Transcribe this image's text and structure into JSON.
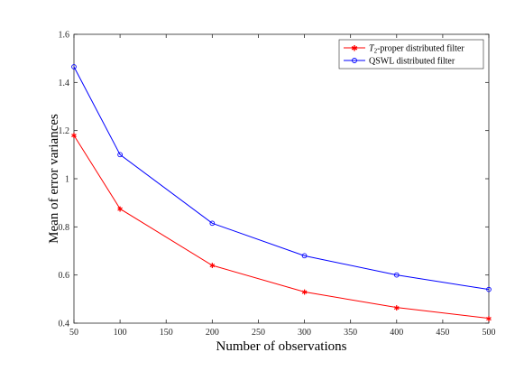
{
  "chart_data": {
    "type": "line",
    "xlabel": "Number of observations",
    "ylabel": "Mean of error variances",
    "xlim": [
      50,
      500
    ],
    "ylim": [
      0.4,
      1.6
    ],
    "xticks": [
      50,
      100,
      150,
      200,
      250,
      300,
      350,
      400,
      450,
      500
    ],
    "yticks": [
      0.4,
      0.6,
      0.8,
      1.0,
      1.2,
      1.4,
      1.6
    ],
    "xtick_labels": [
      "50",
      "100",
      "150",
      "200",
      "250",
      "300",
      "350",
      "400",
      "450",
      "500"
    ],
    "ytick_labels": [
      "0.4",
      "0.6",
      "0.8",
      "1",
      "1.2",
      "1.4",
      "1.6"
    ],
    "grid": false,
    "legend_position": "top-right",
    "series": [
      {
        "name": "T2-proper distributed filter",
        "legend_main": "T",
        "legend_sub": "2",
        "legend_rest": "-proper distributed filter",
        "color": "#ff0000",
        "marker": "star",
        "x": [
          50,
          100,
          200,
          300,
          400,
          500
        ],
        "y": [
          1.18,
          0.875,
          0.64,
          0.53,
          0.465,
          0.42
        ]
      },
      {
        "name": "QSWL distributed filter",
        "legend_main": "QSWL distributed filter",
        "color": "#0000ff",
        "marker": "circle",
        "x": [
          50,
          100,
          200,
          300,
          400,
          500
        ],
        "y": [
          1.465,
          1.1,
          0.815,
          0.68,
          0.6,
          0.54
        ]
      }
    ]
  }
}
